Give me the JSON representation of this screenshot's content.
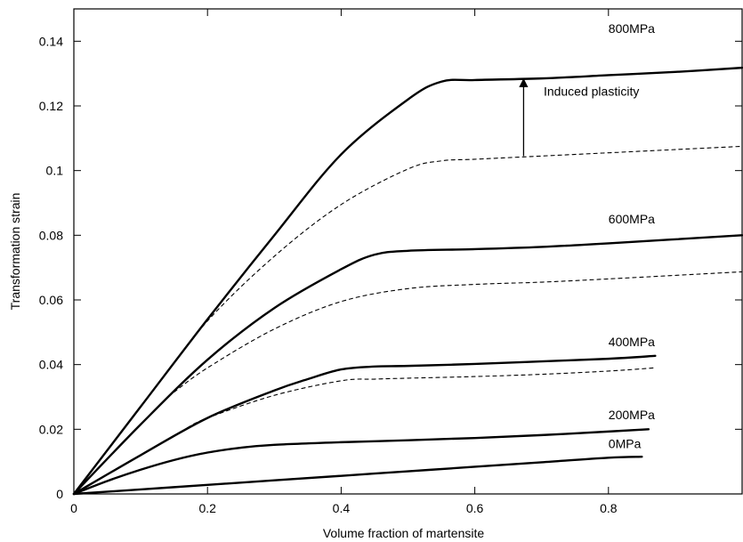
{
  "chart_data": {
    "type": "line",
    "title": "",
    "xlabel": "Volume fraction of martensite",
    "ylabel": "Transformation strain",
    "xlim": [
      0,
      1.0
    ],
    "ylim": [
      0,
      0.15
    ],
    "xticks": [
      0,
      0.2,
      0.4,
      0.6,
      0.8
    ],
    "xtick_labels": [
      "0",
      "0.2",
      "0.4",
      "0.6",
      "0.8"
    ],
    "yticks": [
      0,
      0.02,
      0.04,
      0.06,
      0.08,
      0.1,
      0.12,
      0.14
    ],
    "ytick_labels": [
      "0",
      "0.02",
      "0.04",
      "0.06",
      "0.08",
      "0.1",
      "0.12",
      "0.14"
    ],
    "grid": false,
    "series": [
      {
        "style": "solid",
        "x": [
          0,
          0.1,
          0.2,
          0.3,
          0.4,
          0.5,
          0.6,
          0.7,
          0.8,
          0.85
        ],
        "y": [
          0,
          0.0014,
          0.0028,
          0.0042,
          0.0056,
          0.007,
          0.0084,
          0.0098,
          0.0112,
          0.0115
        ]
      },
      {
        "style": "solid",
        "x": [
          0,
          0.05,
          0.1,
          0.15,
          0.2,
          0.25,
          0.3,
          0.4,
          0.5,
          0.6,
          0.7,
          0.8,
          0.86
        ],
        "y": [
          0,
          0.004,
          0.0075,
          0.0105,
          0.0128,
          0.0143,
          0.0152,
          0.016,
          0.0166,
          0.0173,
          0.0182,
          0.0193,
          0.02
        ]
      },
      {
        "style": "solid",
        "x": [
          0,
          0.1,
          0.2,
          0.3,
          0.35,
          0.4,
          0.45,
          0.5,
          0.6,
          0.7,
          0.8,
          0.87
        ],
        "y": [
          0,
          0.012,
          0.0235,
          0.032,
          0.0355,
          0.0385,
          0.0394,
          0.0396,
          0.0402,
          0.041,
          0.0418,
          0.0427
        ]
      },
      {
        "style": "dashed",
        "x": [
          0.17,
          0.2,
          0.3,
          0.4,
          0.45,
          0.5,
          0.6,
          0.7,
          0.8,
          0.87
        ],
        "y": [
          0.0205,
          0.0235,
          0.0305,
          0.035,
          0.0355,
          0.0358,
          0.0363,
          0.037,
          0.038,
          0.039
        ]
      },
      {
        "style": "solid",
        "x": [
          0,
          0.1,
          0.2,
          0.3,
          0.4,
          0.45,
          0.5,
          0.6,
          0.7,
          0.8,
          1.0
        ],
        "y": [
          0,
          0.0215,
          0.0415,
          0.0575,
          0.0695,
          0.074,
          0.0752,
          0.0757,
          0.0764,
          0.0775,
          0.08
        ]
      },
      {
        "style": "dashed",
        "x": [
          0.15,
          0.2,
          0.3,
          0.4,
          0.5,
          0.6,
          0.7,
          0.8,
          1.0
        ],
        "y": [
          0.0315,
          0.039,
          0.051,
          0.0595,
          0.0635,
          0.0648,
          0.0655,
          0.0665,
          0.0687
        ]
      },
      {
        "style": "solid",
        "x": [
          0,
          0.1,
          0.2,
          0.3,
          0.4,
          0.5,
          0.55,
          0.6,
          0.7,
          0.8,
          0.9,
          1.0
        ],
        "y": [
          0,
          0.027,
          0.054,
          0.08,
          0.105,
          0.122,
          0.1275,
          0.128,
          0.1285,
          0.1295,
          0.1305,
          0.1318
        ]
      },
      {
        "style": "dashed",
        "x": [
          0.12,
          0.2,
          0.3,
          0.4,
          0.5,
          0.55,
          0.6,
          0.7,
          0.8,
          0.9,
          1.0
        ],
        "y": [
          0.0325,
          0.0535,
          0.0735,
          0.0895,
          0.1005,
          0.103,
          0.1035,
          0.1045,
          0.1055,
          0.1065,
          0.1075
        ]
      }
    ],
    "curve_labels": [
      {
        "text": "800MPa",
        "x": 0.8,
        "y": 0.144
      },
      {
        "text": "600MPa",
        "x": 0.8,
        "y": 0.085
      },
      {
        "text": "400MPa",
        "x": 0.8,
        "y": 0.047
      },
      {
        "text": "200MPa",
        "x": 0.8,
        "y": 0.0245
      },
      {
        "text": "0MPa",
        "x": 0.8,
        "y": 0.0155
      }
    ],
    "annotation": {
      "text": "Induced plasticity",
      "text_x": 0.703,
      "text_y": 0.1245,
      "arrow_x": 0.673,
      "arrow_from_y": 0.1045,
      "arrow_to_y": 0.1283
    }
  }
}
